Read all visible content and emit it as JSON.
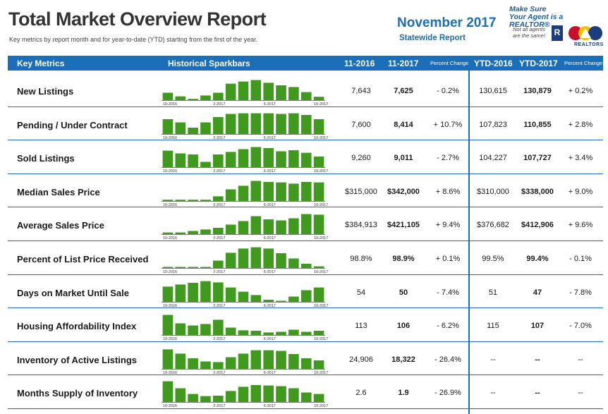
{
  "report": {
    "title": "Total Market Overview Report",
    "subtitle": "Key metrics by report month and for year-to-date (YTD) starting from the first of the year.",
    "month": "November 2017",
    "region": "Statewide Report"
  },
  "badge": {
    "line1": "Make Sure",
    "line2": "Your Agent is a REALTOR®",
    "note": "Not all agents are the same!",
    "realtor_mark": "R",
    "realtors_label": "REALTORS"
  },
  "header": {
    "key_metrics": "Key Metrics",
    "sparkbars": "Historical Sparkbars",
    "col_11_2016": "11-2016",
    "col_11_2017": "11-2017",
    "pct_change": "Percent Change",
    "col_ytd_2016": "YTD-2016",
    "col_ytd_2017": "YTD-2017",
    "pct_change_ytd": "Percent Change"
  },
  "spark_labels": [
    "10-2016",
    "2-2017",
    "6-2017",
    "10-2017"
  ],
  "colors": {
    "accent": "#1b6fb8",
    "bar": "#3f9a1e"
  },
  "rows": [
    {
      "metric": "New Listings",
      "v2016": "7,643",
      "v2017": "7,625",
      "pct": "- 0.2%",
      "ytd2016": "130,615",
      "ytd2017": "130,879",
      "ytdpct": "+ 0.2%",
      "bars": [
        0.35,
        0.18,
        0.06,
        0.22,
        0.35,
        0.78,
        0.88,
        0.95,
        0.82,
        0.7,
        0.62,
        0.38,
        0.16
      ]
    },
    {
      "metric": "Pending / Under Contract",
      "v2016": "7,600",
      "v2017": "8,414",
      "pct": "+ 10.7%",
      "ytd2016": "107,823",
      "ytd2017": "110,855",
      "ytdpct": "+ 2.8%",
      "bars": [
        0.7,
        0.55,
        0.3,
        0.55,
        0.8,
        0.95,
        0.98,
        0.98,
        0.98,
        0.95,
        0.98,
        0.9,
        0.7
      ]
    },
    {
      "metric": "Sold Listings",
      "v2016": "9,260",
      "v2017": "9,011",
      "pct": "- 2.7%",
      "ytd2016": "104,227",
      "ytd2017": "107,727",
      "ytdpct": "+ 3.4%",
      "bars": [
        0.78,
        0.65,
        0.6,
        0.25,
        0.6,
        0.72,
        0.85,
        0.95,
        0.9,
        0.75,
        0.8,
        0.68,
        0.5
      ]
    },
    {
      "metric": "Median Sales Price",
      "v2016": "$315,000",
      "v2017": "$342,000",
      "pct": "+ 8.6%",
      "ytd2016": "$310,000",
      "ytd2017": "$338,000",
      "ytdpct": "+ 9.0%",
      "bars": [
        0.06,
        0.06,
        0.06,
        0.06,
        0.22,
        0.55,
        0.72,
        0.95,
        0.9,
        0.88,
        0.82,
        0.9,
        0.88
      ]
    },
    {
      "metric": "Average Sales Price",
      "v2016": "$384,913",
      "v2017": "$421,105",
      "pct": "+ 9.4%",
      "ytd2016": "$376,682",
      "ytd2017": "$412,906",
      "ytdpct": "+ 9.6%",
      "bars": [
        0.08,
        0.08,
        0.15,
        0.22,
        0.3,
        0.45,
        0.62,
        0.85,
        0.7,
        0.65,
        0.75,
        0.95,
        0.92
      ]
    },
    {
      "metric": "Percent of List Price Received",
      "v2016": "98.8%",
      "v2017": "98.9%",
      "pct": "+ 0.1%",
      "ytd2016": "99.5%",
      "ytd2017": "99.4%",
      "ytdpct": "- 0.1%",
      "bars": [
        0.05,
        0.05,
        0.05,
        0.05,
        0.35,
        0.72,
        0.92,
        0.98,
        0.92,
        0.7,
        0.45,
        0.2,
        0.08
      ]
    },
    {
      "metric": "Days on Market Until Sale",
      "v2016": "54",
      "v2017": "50",
      "pct": "- 7.4%",
      "ytd2016": "51",
      "ytd2017": "47",
      "ytdpct": "- 7.8%",
      "bars": [
        0.72,
        0.82,
        0.9,
        0.98,
        0.92,
        0.68,
        0.48,
        0.32,
        0.1,
        0.05,
        0.25,
        0.55,
        0.68
      ]
    },
    {
      "metric": "Housing Affordability Index",
      "v2016": "113",
      "v2017": "106",
      "pct": "- 6.2%",
      "ytd2016": "115",
      "ytd2017": "107",
      "ytdpct": "- 7.0%",
      "bars": [
        0.95,
        0.55,
        0.45,
        0.52,
        0.72,
        0.35,
        0.22,
        0.2,
        0.12,
        0.15,
        0.25,
        0.15,
        0.2
      ]
    },
    {
      "metric": "Inventory of Active Listings",
      "v2016": "24,906",
      "v2017": "18,322",
      "pct": "- 26.4%",
      "ytd2016": "--",
      "ytd2017": "--",
      "ytdpct": "--",
      "bars": [
        0.92,
        0.72,
        0.5,
        0.35,
        0.32,
        0.55,
        0.72,
        0.88,
        0.88,
        0.85,
        0.7,
        0.5,
        0.4
      ]
    },
    {
      "metric": "Months Supply of Inventory",
      "v2016": "2.6",
      "v2017": "1.9",
      "pct": "- 26.9%",
      "ytd2016": "--",
      "ytd2017": "--",
      "ytdpct": "--",
      "bars": [
        0.98,
        0.65,
        0.38,
        0.28,
        0.3,
        0.52,
        0.72,
        0.8,
        0.78,
        0.75,
        0.65,
        0.45,
        0.38
      ]
    }
  ]
}
